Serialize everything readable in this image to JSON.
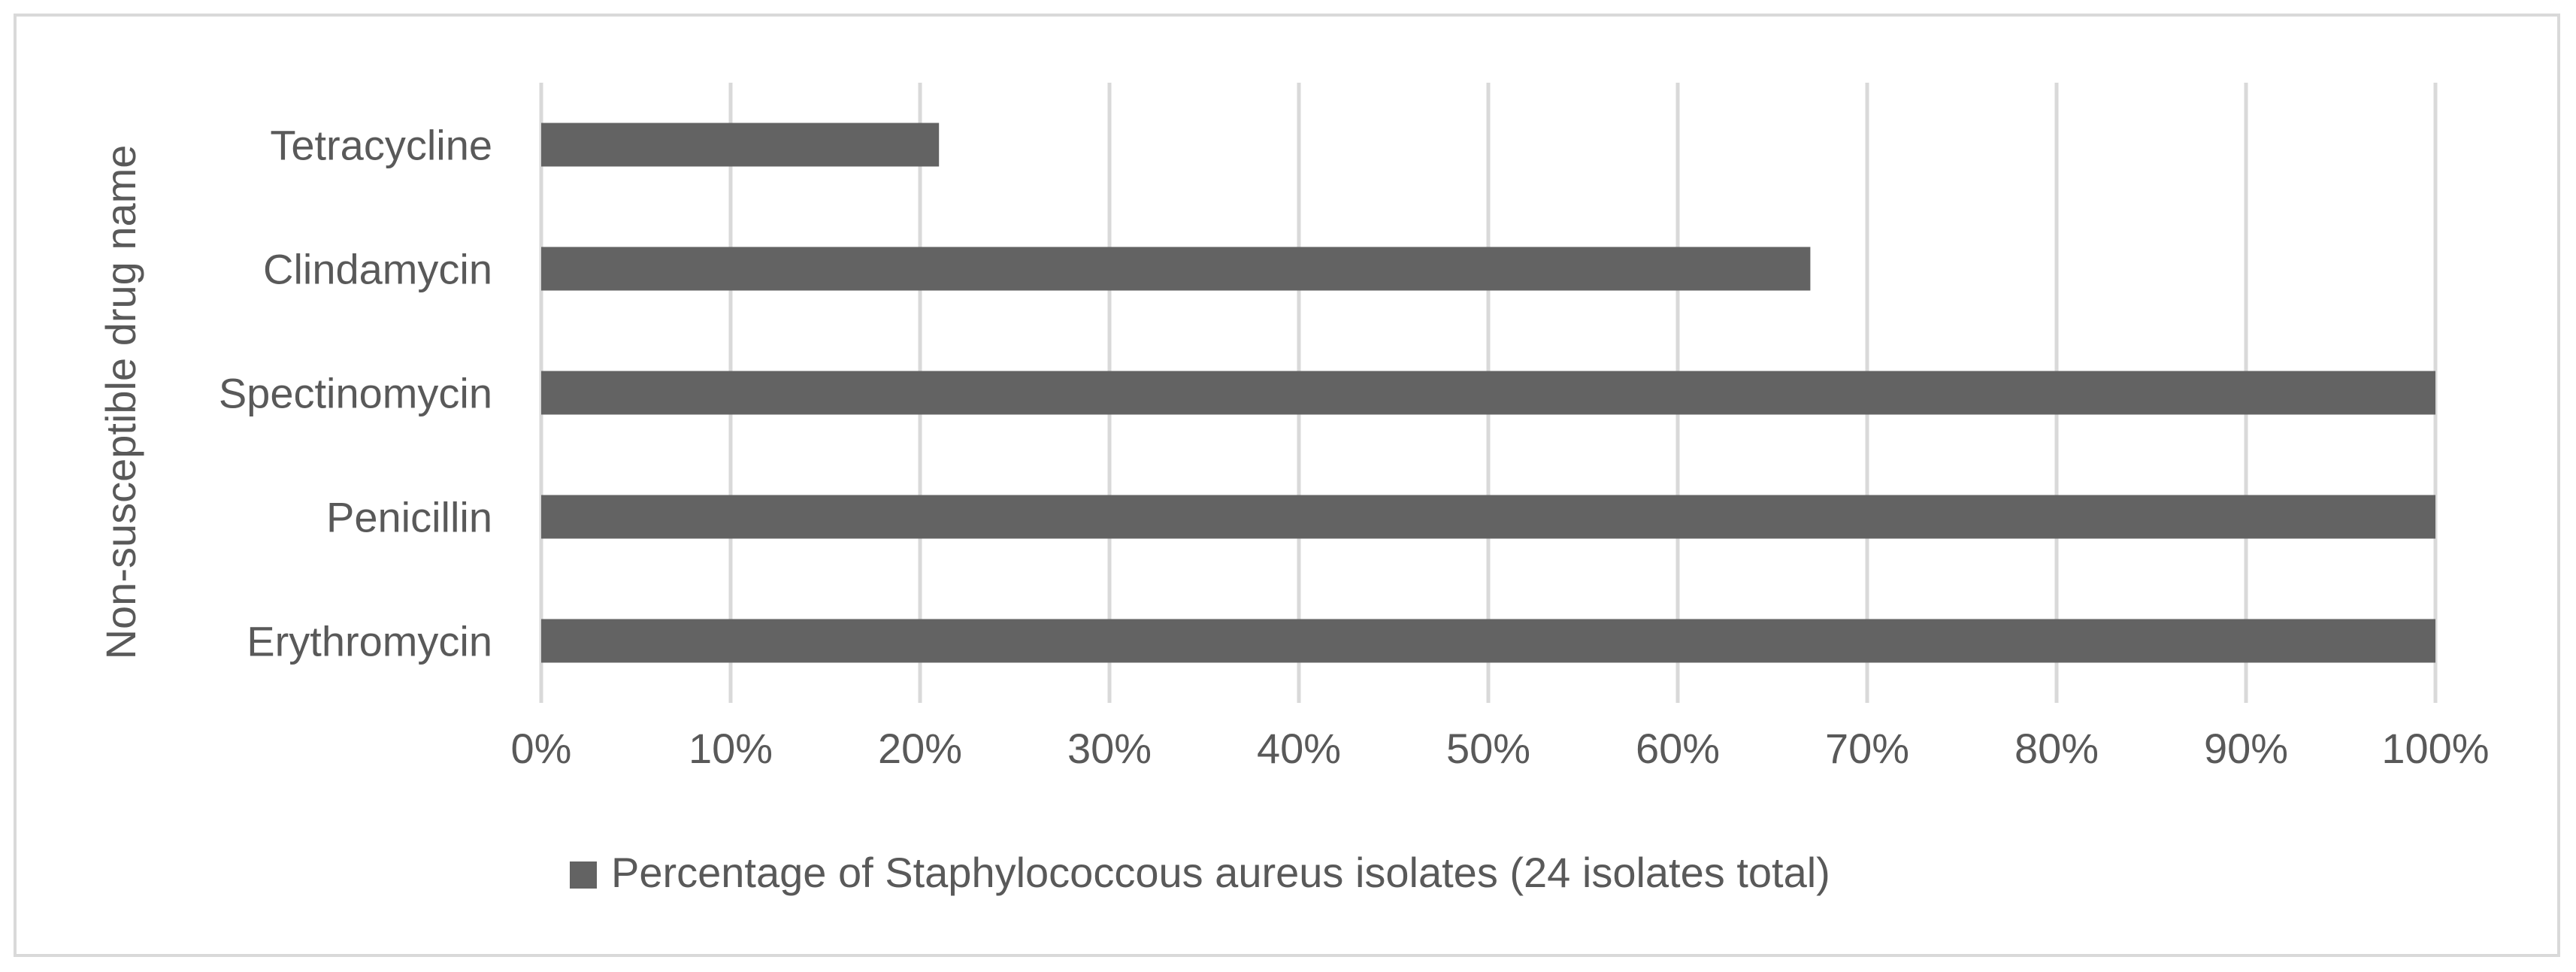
{
  "chart_data": {
    "type": "bar",
    "orientation": "horizontal",
    "title": "",
    "xlabel": "",
    "ylabel": "Non-susceptible drug name",
    "categories": [
      "Erythromycin",
      "Penicillin",
      "Spectinomycin",
      "Clindamycin",
      "Tetracycline"
    ],
    "series": [
      {
        "name": "Percentage of Staphylococcous aureus isolates (24 isolates total)",
        "values": [
          100,
          100,
          100,
          67,
          21
        ]
      }
    ],
    "xlim": [
      0,
      100
    ],
    "xticks": [
      "0%",
      "10%",
      "20%",
      "30%",
      "40%",
      "50%",
      "60%",
      "70%",
      "80%",
      "90%",
      "100%"
    ],
    "grid": "vertical",
    "legend_position": "bottom",
    "colors": {
      "bar": "#636363",
      "grid": "#d9d9d9",
      "text": "#595959",
      "border": "#d9d9d9"
    }
  }
}
